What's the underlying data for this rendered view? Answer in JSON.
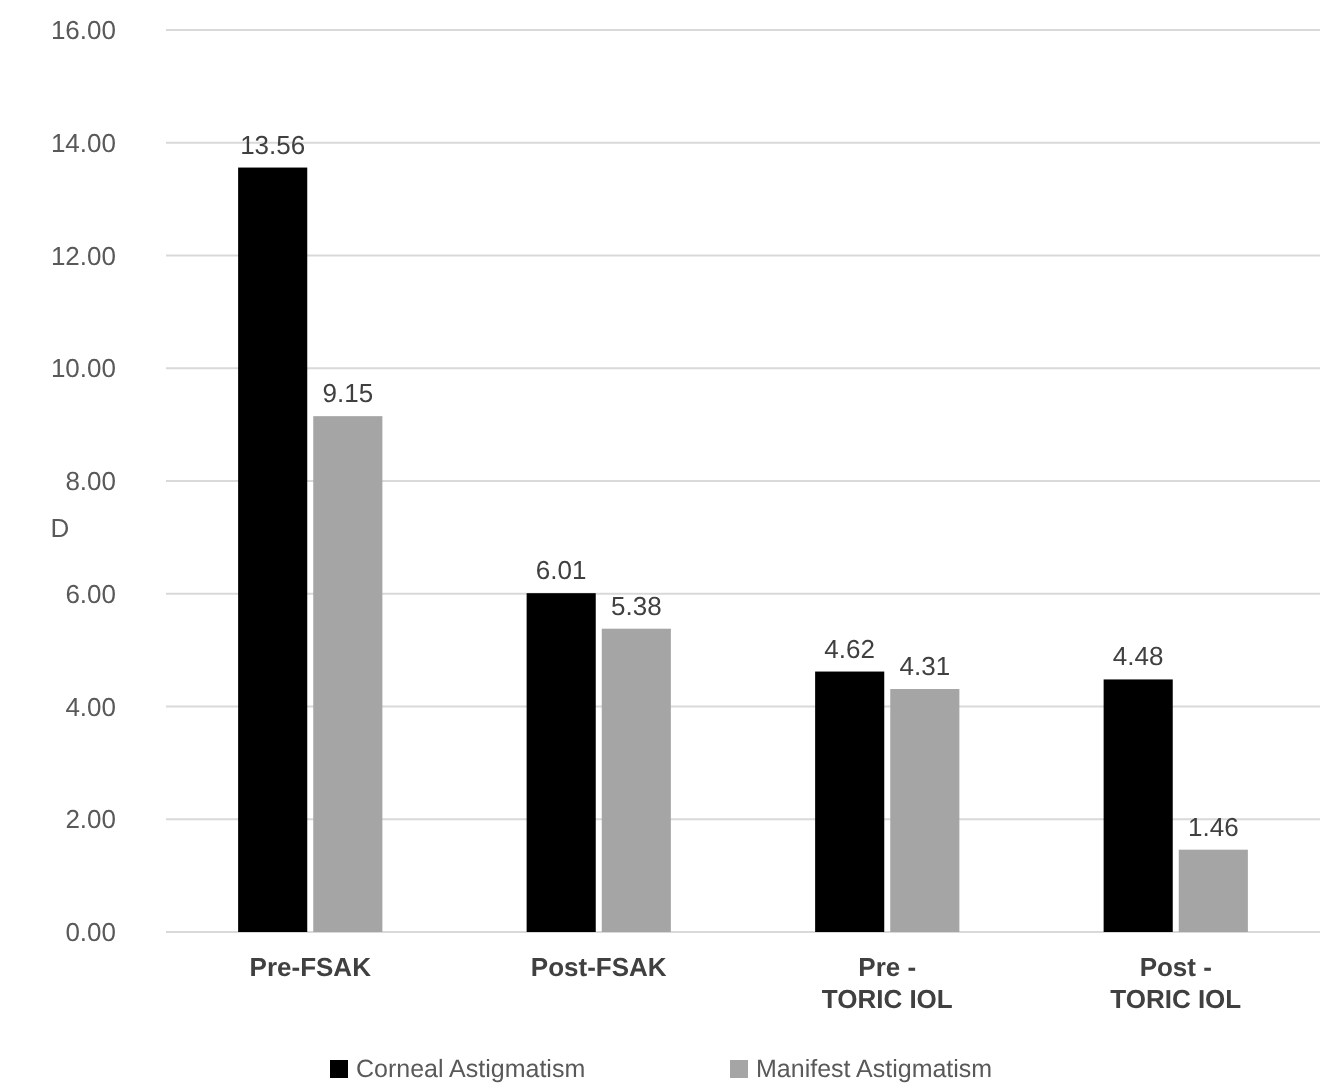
{
  "chart_data": {
    "type": "bar",
    "ylabel": "D",
    "categories": [
      "Pre-FSAK",
      "Post-FSAK",
      "Pre -\nTORIC IOL",
      "Post -\nTORIC IOL"
    ],
    "series": [
      {
        "name": "Corneal Astigmatism",
        "color": "#000000",
        "values": [
          13.56,
          6.01,
          4.62,
          4.48
        ]
      },
      {
        "name": "Manifest Astigmatism",
        "color": "#a5a5a5",
        "values": [
          9.15,
          5.38,
          4.31,
          1.46
        ]
      }
    ],
    "ylim": [
      0,
      16
    ],
    "yticks": [
      {
        "value": 0,
        "label": "0.00"
      },
      {
        "value": 2,
        "label": "2.00"
      },
      {
        "value": 4,
        "label": "4.00"
      },
      {
        "value": 6,
        "label": "6.00"
      },
      {
        "value": 8,
        "label": "8.00"
      },
      {
        "value": 10,
        "label": "10.00"
      },
      {
        "value": 12,
        "label": "12.00"
      },
      {
        "value": 14,
        "label": "14.00"
      },
      {
        "value": 16,
        "label": "16.00"
      }
    ],
    "grid": "y",
    "data_labels": true,
    "legend": "bottom"
  }
}
